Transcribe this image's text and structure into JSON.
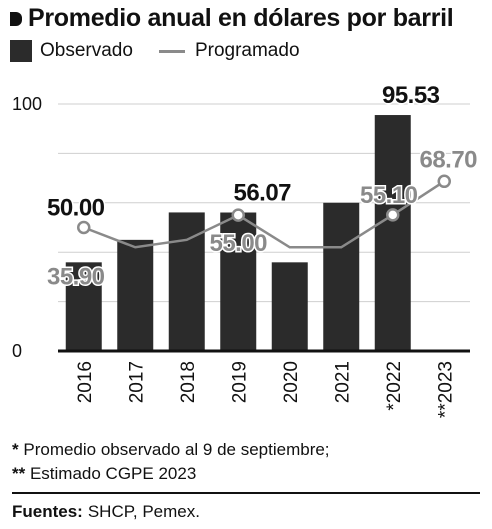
{
  "title": "Promedio anual en dólares por barril",
  "legend": {
    "observed": "Observado",
    "programmed": "Programado"
  },
  "chart_data": {
    "type": "bar",
    "categories": [
      "2016",
      "2017",
      "2018",
      "2019",
      "2020",
      "2021",
      "*2022",
      "**2023"
    ],
    "series": [
      {
        "name": "Observado",
        "type": "bar",
        "values": [
          35.9,
          45.0,
          56.1,
          56.07,
          35.9,
          60.0,
          95.53,
          null
        ]
      },
      {
        "name": "Programado",
        "type": "line",
        "values": [
          50.0,
          42.0,
          45.0,
          55.0,
          42.0,
          42.0,
          55.1,
          68.7
        ]
      }
    ],
    "data_labels": [
      {
        "text": "50.00",
        "series": "Programado",
        "category": "2016",
        "tone": "dark"
      },
      {
        "text": "35.90",
        "series": "Observado",
        "category": "2016",
        "tone": "gray"
      },
      {
        "text": "56.07",
        "series": "Observado",
        "category": "2019",
        "tone": "dark"
      },
      {
        "text": "55.00",
        "series": "Programado",
        "category": "2019",
        "tone": "gray"
      },
      {
        "text": "95.53",
        "series": "Observado",
        "category": "*2022",
        "tone": "dark"
      },
      {
        "text": "55.10",
        "series": "Programado",
        "category": "*2022",
        "tone": "gray"
      },
      {
        "text": "68.70",
        "series": "Programado",
        "category": "**2023",
        "tone": "gray"
      }
    ],
    "yticks": [
      "0",
      "100"
    ],
    "ylim": [
      0,
      100
    ],
    "grid": true,
    "colors": {
      "bar": "#2b2b2b",
      "line": "#8a8a8a",
      "marker_fill": "#ffffff",
      "label_dark": "#111111",
      "label_gray": "#8a8a8a"
    }
  },
  "notes": [
    {
      "mark": "*",
      "text": "Promedio observado al 9 de septiembre;"
    },
    {
      "mark": "**",
      "text": "Estimado CGPE 2023"
    }
  ],
  "source": {
    "label": "Fuentes:",
    "text": "SHCP, Pemex."
  }
}
